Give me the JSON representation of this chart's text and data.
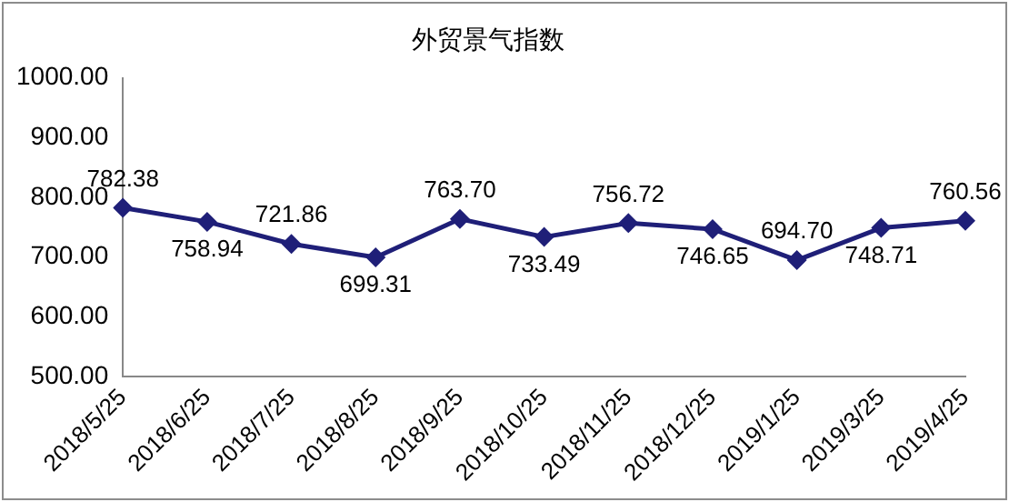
{
  "chart_data": {
    "type": "line",
    "title": "外贸景气指数",
    "categories": [
      "2018/5/25",
      "2018/6/25",
      "2018/7/25",
      "2018/8/25",
      "2018/9/25",
      "2018/10/25",
      "2018/11/25",
      "2018/12/25",
      "2019/1/25",
      "2019/3/25",
      "2019/4/25"
    ],
    "values": [
      782.38,
      758.94,
      721.86,
      699.31,
      763.7,
      733.49,
      756.72,
      746.65,
      694.7,
      748.71,
      760.56
    ],
    "value_labels": [
      "782.38",
      "758.94",
      "721.86",
      "699.31",
      "763.70",
      "733.49",
      "756.72",
      "746.65",
      "694.70",
      "748.71",
      "760.56"
    ],
    "color": "#1f1f78",
    "marker": "diamond",
    "line_style": "solid",
    "grid": false,
    "legend": false,
    "ylim": [
      500,
      1000
    ],
    "yticks": [
      {
        "value": 500,
        "label": "500.00"
      },
      {
        "value": 600,
        "label": "600.00"
      },
      {
        "value": 700,
        "label": "700.00"
      },
      {
        "value": 800,
        "label": "800.00"
      },
      {
        "value": 900,
        "label": "900.00"
      },
      {
        "value": 1000,
        "label": "1000.00"
      }
    ]
  }
}
